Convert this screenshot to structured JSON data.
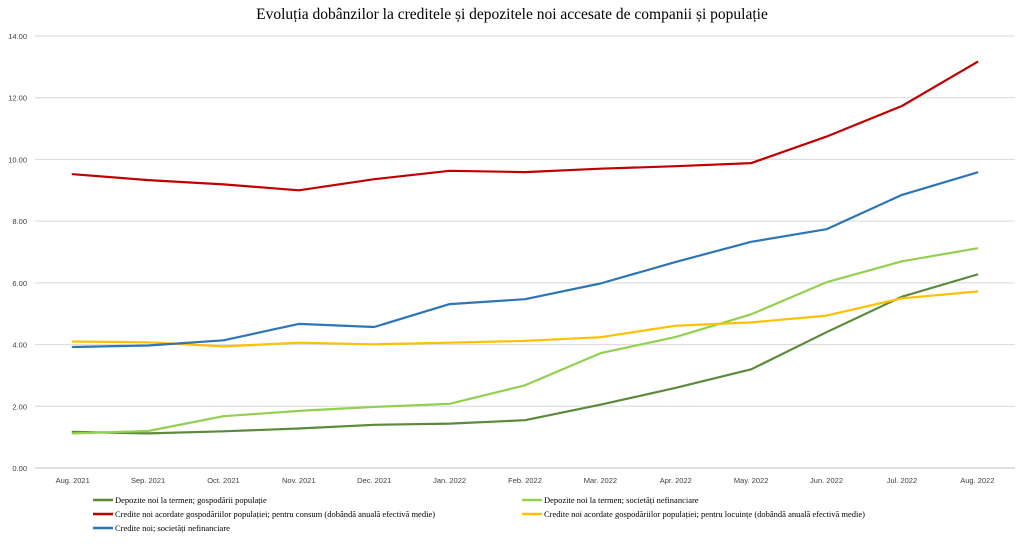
{
  "chart_data": {
    "type": "line",
    "title": "Evoluția dobânzilor la creditele și depozitele noi accesate de companii și populație",
    "categories": [
      "Aug. 2021",
      "Sep. 2021",
      "Oct. 2021",
      "Nov. 2021",
      "Dec. 2021",
      "Jan. 2022",
      "Feb. 2022",
      "Mar. 2022",
      "Apr. 2022",
      "May. 2022",
      "Jun. 2022",
      "Jul. 2022",
      "Aug. 2022"
    ],
    "ylim": [
      0,
      14
    ],
    "yticks": [
      "0.00",
      "2.00",
      "4.00",
      "6.00",
      "8.00",
      "10.00",
      "12.00",
      "14.00"
    ],
    "grid": true,
    "legend_position": "bottom",
    "series": [
      {
        "name": "Depozite noi la termen; gospodării populație",
        "color": "#5a8a3a",
        "values": [
          1.17,
          1.12,
          1.19,
          1.28,
          1.4,
          1.44,
          1.55,
          2.05,
          2.6,
          3.2,
          4.4,
          5.55,
          6.27
        ]
      },
      {
        "name": "Depozite noi la termen; societăți nefinanciare",
        "color": "#92d050",
        "values": [
          1.12,
          1.2,
          1.68,
          1.85,
          1.98,
          2.08,
          2.68,
          3.72,
          4.25,
          4.98,
          6.02,
          6.7,
          7.12
        ]
      },
      {
        "name": "Credite noi acordate gospodăriilor populației; pentru consum (dobândă anuală efectivă medie)",
        "color": "#c00000",
        "values": [
          9.52,
          9.33,
          9.19,
          9.0,
          9.36,
          9.63,
          9.59,
          9.7,
          9.78,
          9.88,
          10.74,
          11.73,
          13.16
        ]
      },
      {
        "name": "Credite noi acordate gospodăriilor populației; pentru locuințe (dobândă anuală efectivă medie)",
        "color": "#ffc000",
        "values": [
          4.1,
          4.07,
          3.94,
          4.06,
          4.01,
          4.06,
          4.12,
          4.24,
          4.61,
          4.72,
          4.94,
          5.5,
          5.72
        ]
      },
      {
        "name": "Credite noi; societăți nefinanciare",
        "color": "#2e75b6",
        "values": [
          3.92,
          3.97,
          4.14,
          4.67,
          4.57,
          5.31,
          5.47,
          5.98,
          6.68,
          7.33,
          7.74,
          8.85,
          9.58
        ]
      }
    ]
  }
}
